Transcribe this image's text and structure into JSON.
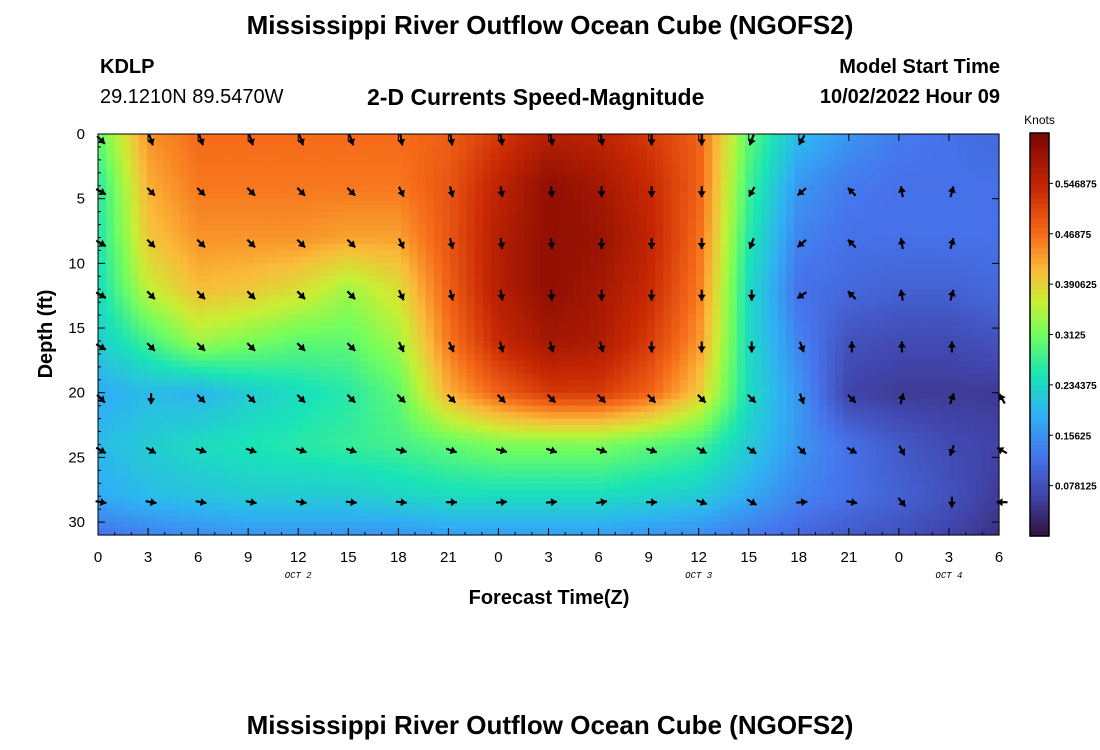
{
  "header": {
    "title": "Mississippi River Outflow Ocean Cube (NGOFS2)",
    "station": "KDLP",
    "coords": "29.1210N  89.5470W",
    "panel_title": "2-D Currents Speed-Magnitude",
    "start_label": "Model Start Time",
    "start_value": "10/02/2022 Hour 09"
  },
  "footer": {
    "title": "Mississippi River Outflow Ocean Cube (NGOFS2)"
  },
  "chart_data": {
    "type": "heatmap",
    "xlabel": "Forecast Time(Z)",
    "ylabel": "Depth (ft)",
    "x_ticks": [
      "0",
      "3",
      "6",
      "9",
      "12",
      "15",
      "18",
      "21",
      "0",
      "3",
      "6",
      "9",
      "12",
      "15",
      "18",
      "21",
      "0",
      "3",
      "6"
    ],
    "x_hours": [
      0,
      3,
      6,
      9,
      12,
      15,
      18,
      21,
      24,
      27,
      30,
      33,
      36,
      39,
      42,
      45,
      48,
      51,
      54
    ],
    "xlim": [
      0,
      54
    ],
    "day_labels": [
      {
        "label": "OCT 2",
        "hour": 12
      },
      {
        "label": "OCT 3",
        "hour": 36
      },
      {
        "label": "OCT 4",
        "hour": 51
      }
    ],
    "y_ticks": [
      0,
      5,
      10,
      15,
      20,
      25,
      30
    ],
    "ylim": [
      0,
      31
    ],
    "y_inverted": true,
    "colorbar": {
      "unit": "Knots",
      "ticks": [
        "0.078125",
        "0.15625",
        "0.234375",
        "0.3125",
        "0.390625",
        "0.46875",
        "0.546875"
      ],
      "range": [
        0,
        0.625
      ]
    },
    "speed_grid": {
      "times_hr": [
        0,
        3,
        6,
        9,
        12,
        15,
        18,
        21,
        24,
        27,
        30,
        33,
        36,
        39,
        42,
        45,
        48,
        51,
        54
      ],
      "depths_ft": [
        0,
        4,
        8,
        12,
        16,
        20,
        24,
        28,
        31
      ],
      "values_knots": [
        [
          0.3,
          0.44,
          0.47,
          0.47,
          0.47,
          0.47,
          0.47,
          0.48,
          0.52,
          0.56,
          0.55,
          0.52,
          0.48,
          0.3,
          0.2,
          0.16,
          0.13,
          0.12,
          0.11
        ],
        [
          0.26,
          0.42,
          0.46,
          0.46,
          0.46,
          0.46,
          0.46,
          0.49,
          0.55,
          0.6,
          0.58,
          0.54,
          0.48,
          0.28,
          0.16,
          0.13,
          0.12,
          0.12,
          0.12
        ],
        [
          0.25,
          0.4,
          0.44,
          0.44,
          0.44,
          0.43,
          0.43,
          0.49,
          0.56,
          0.6,
          0.59,
          0.55,
          0.47,
          0.26,
          0.14,
          0.12,
          0.12,
          0.12,
          0.12
        ],
        [
          0.24,
          0.36,
          0.41,
          0.4,
          0.38,
          0.34,
          0.38,
          0.48,
          0.56,
          0.6,
          0.58,
          0.54,
          0.46,
          0.24,
          0.12,
          0.11,
          0.1,
          0.1,
          0.11
        ],
        [
          0.22,
          0.28,
          0.34,
          0.32,
          0.3,
          0.3,
          0.34,
          0.46,
          0.54,
          0.58,
          0.57,
          0.52,
          0.44,
          0.24,
          0.14,
          0.08,
          0.07,
          0.07,
          0.08
        ],
        [
          0.18,
          0.2,
          0.19,
          0.22,
          0.24,
          0.26,
          0.3,
          0.42,
          0.48,
          0.52,
          0.52,
          0.48,
          0.4,
          0.24,
          0.16,
          0.06,
          0.05,
          0.05,
          0.05
        ],
        [
          0.2,
          0.22,
          0.24,
          0.25,
          0.26,
          0.27,
          0.28,
          0.3,
          0.32,
          0.32,
          0.32,
          0.3,
          0.28,
          0.22,
          0.16,
          0.12,
          0.09,
          0.07,
          0.06
        ],
        [
          0.18,
          0.2,
          0.21,
          0.22,
          0.22,
          0.22,
          0.23,
          0.24,
          0.24,
          0.24,
          0.24,
          0.23,
          0.22,
          0.18,
          0.14,
          0.12,
          0.1,
          0.08,
          0.05
        ],
        [
          0.12,
          0.14,
          0.15,
          0.16,
          0.16,
          0.16,
          0.16,
          0.17,
          0.17,
          0.17,
          0.17,
          0.16,
          0.15,
          0.13,
          0.11,
          0.09,
          0.08,
          0.06,
          0.04
        ]
      ]
    },
    "vectors": {
      "times_hr": [
        0,
        3,
        6,
        9,
        12,
        15,
        18,
        21,
        24,
        27,
        30,
        33,
        36,
        39,
        42,
        45,
        48,
        51,
        54
      ],
      "depths_ft": [
        0,
        4,
        8,
        12,
        16,
        20,
        24,
        28
      ],
      "direction_deg": [
        [
          135,
          160,
          160,
          160,
          160,
          160,
          170,
          170,
          170,
          170,
          170,
          180,
          180,
          200,
          210,
          null,
          null,
          null,
          null
        ],
        [
          120,
          135,
          135,
          135,
          135,
          135,
          155,
          165,
          170,
          175,
          180,
          180,
          180,
          210,
          230,
          315,
          350,
          15,
          null
        ],
        [
          120,
          135,
          135,
          135,
          135,
          135,
          155,
          165,
          170,
          175,
          180,
          180,
          180,
          200,
          230,
          315,
          350,
          15,
          null
        ],
        [
          120,
          135,
          135,
          135,
          135,
          135,
          155,
          165,
          170,
          175,
          180,
          180,
          180,
          180,
          235,
          315,
          350,
          15,
          null
        ],
        [
          120,
          135,
          135,
          135,
          135,
          135,
          155,
          155,
          165,
          165,
          165,
          180,
          180,
          180,
          160,
          0,
          0,
          0,
          null
        ],
        [
          135,
          180,
          135,
          135,
          135,
          135,
          135,
          135,
          135,
          135,
          135,
          135,
          135,
          135,
          160,
          135,
          15,
          20,
          330
        ],
        [
          120,
          120,
          110,
          110,
          110,
          110,
          105,
          110,
          105,
          110,
          110,
          110,
          120,
          125,
          135,
          120,
          150,
          200,
          300
        ],
        [
          100,
          100,
          100,
          100,
          100,
          95,
          95,
          90,
          85,
          85,
          80,
          90,
          110,
          120,
          85,
          100,
          140,
          180,
          270
        ]
      ]
    }
  }
}
